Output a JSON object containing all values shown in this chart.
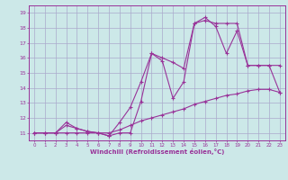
{
  "xlabel": "Windchill (Refroidissement éolien,°C)",
  "bg_color": "#cce8e8",
  "grid_color": "#aaaacc",
  "line_color": "#993399",
  "xlim": [
    -0.5,
    23.5
  ],
  "ylim": [
    10.5,
    19.5
  ],
  "xticks": [
    0,
    1,
    2,
    3,
    4,
    5,
    6,
    7,
    8,
    9,
    10,
    11,
    12,
    13,
    14,
    15,
    16,
    17,
    18,
    19,
    20,
    21,
    22,
    23
  ],
  "yticks": [
    11,
    12,
    13,
    14,
    15,
    16,
    17,
    18,
    19
  ],
  "line1_x": [
    0,
    1,
    2,
    3,
    4,
    5,
    6,
    7,
    8,
    9,
    10,
    11,
    12,
    13,
    14,
    15,
    16,
    17,
    18,
    19,
    20,
    21,
    22,
    23
  ],
  "line1_y": [
    11.0,
    11.0,
    11.0,
    11.5,
    11.3,
    11.1,
    11.0,
    10.8,
    11.7,
    12.7,
    14.4,
    16.3,
    16.0,
    15.7,
    15.3,
    18.3,
    18.7,
    18.1,
    16.3,
    17.8,
    15.5,
    15.5,
    15.5,
    13.7
  ],
  "line2_x": [
    0,
    1,
    2,
    3,
    4,
    5,
    6,
    7,
    8,
    9,
    10,
    11,
    12,
    13,
    14,
    15,
    16,
    17,
    18,
    19,
    20,
    21,
    22,
    23
  ],
  "line2_y": [
    11.0,
    11.0,
    11.0,
    11.7,
    11.3,
    11.1,
    11.0,
    10.8,
    11.0,
    11.0,
    13.1,
    16.3,
    15.8,
    13.3,
    14.4,
    18.3,
    18.5,
    18.3,
    18.3,
    18.3,
    15.5,
    15.5,
    15.5,
    15.5
  ],
  "line3_x": [
    0,
    1,
    2,
    3,
    4,
    5,
    6,
    7,
    8,
    9,
    10,
    11,
    12,
    13,
    14,
    15,
    16,
    17,
    18,
    19,
    20,
    21,
    22,
    23
  ],
  "line3_y": [
    11.0,
    11.0,
    11.0,
    11.0,
    11.0,
    11.0,
    11.0,
    11.0,
    11.2,
    11.5,
    11.8,
    12.0,
    12.2,
    12.4,
    12.6,
    12.9,
    13.1,
    13.3,
    13.5,
    13.6,
    13.8,
    13.9,
    13.9,
    13.7
  ]
}
